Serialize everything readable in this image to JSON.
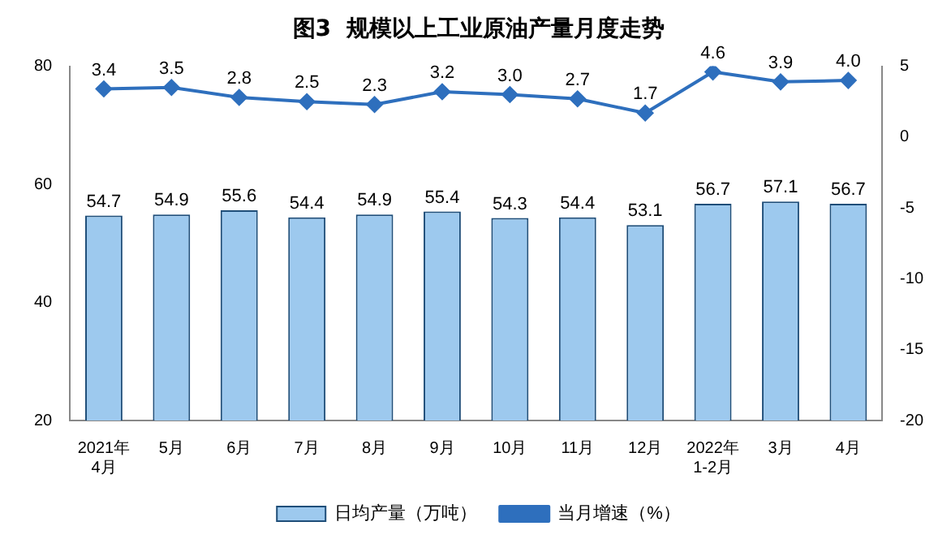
{
  "chart_data": {
    "type": "bar",
    "title": "图3  规模以上工业原油产量月度走势",
    "categories": [
      "2021年\n4月",
      "5月",
      "6月",
      "7月",
      "8月",
      "9月",
      "10月",
      "11月",
      "12月",
      "2022年\n1-2月",
      "3月",
      "4月"
    ],
    "series": [
      {
        "name": "日均产量（万吨）",
        "color": "#9dc9ee",
        "values": [
          54.7,
          54.9,
          55.6,
          54.4,
          54.9,
          55.4,
          54.3,
          54.4,
          53.1,
          56.7,
          57.1,
          56.7
        ],
        "value_labels": [
          "54.7",
          "54.9",
          "55.6",
          "54.4",
          "54.9",
          "55.4",
          "54.3",
          "54.4",
          "53.1",
          "56.7",
          "57.1",
          "56.7"
        ]
      },
      {
        "name": "当月增速（%）",
        "type": "line",
        "axis": "y2",
        "color": "#2e6fbd",
        "values": [
          3.4,
          3.5,
          2.8,
          2.5,
          2.3,
          3.2,
          3.0,
          2.7,
          1.7,
          4.6,
          3.9,
          4.0
        ],
        "value_labels": [
          "3.4",
          "3.5",
          "2.8",
          "2.5",
          "2.3",
          "3.2",
          "3.0",
          "2.7",
          "1.7",
          "4.6",
          "3.9",
          "4.0"
        ]
      }
    ],
    "ylim": [
      20,
      80
    ],
    "yticks": [
      20,
      40,
      60,
      80
    ],
    "y2lim": [
      -20,
      5
    ],
    "y2ticks": [
      -20,
      -15,
      -10,
      -5,
      0,
      5
    ],
    "grid": false,
    "legend": "bottom",
    "marker": "diamond",
    "line_style": "solid"
  }
}
